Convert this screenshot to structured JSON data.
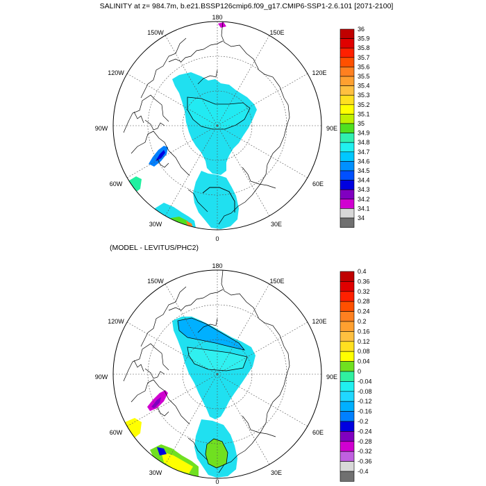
{
  "panels": [
    {
      "id": "top",
      "title": "SALINITY at z= 984.7m, b.e21.BSSP126cmip6.f09_g17.CMIP6-SSP1-2.6.101 [2071-2100]",
      "lon_labels": [
        "180",
        "150E",
        "120E",
        "90E",
        "60E",
        "30E",
        "0",
        "30W",
        "60W",
        "90W",
        "120W",
        "150W"
      ],
      "legend_labels": [
        "36",
        "35.9",
        "35.8",
        "35.7",
        "35.6",
        "35.5",
        "35.4",
        "35.3",
        "35.2",
        "35.1",
        "35",
        "34.9",
        "34.8",
        "34.7",
        "34.6",
        "34.5",
        "34.4",
        "34.3",
        "34.2",
        "34.1",
        "34"
      ],
      "legend_colors": [
        "#c00000",
        "#e00000",
        "#ff2000",
        "#ff5000",
        "#ff8020",
        "#ffa030",
        "#ffc040",
        "#ffe020",
        "#ffff00",
        "#c0f000",
        "#50e020",
        "#30f0b0",
        "#20f0f0",
        "#00c8ff",
        "#0090ff",
        "#0050ff",
        "#0000e0",
        "#8000c0",
        "#d000d0",
        "#d8d8d8",
        "#707070"
      ],
      "shading": {
        "main_fill": "#20e0f0",
        "inner_fill": "#22eaf2",
        "atl_fill": "#20e0f0",
        "baffin_fill": "#0080ff",
        "baffin_core": "#0000e0",
        "labrador_fill": "#20f0a0",
        "greenland_edge": "#ff8020",
        "north_spot": "#d000d0"
      }
    },
    {
      "id": "bottom",
      "title": "(MODEL - LEVITUS/PHC2)",
      "lon_labels": [
        "180",
        "150E",
        "120E",
        "90E",
        "60E",
        "30E",
        "0",
        "30W",
        "60W",
        "90W",
        "120W",
        "150W"
      ],
      "legend_labels": [
        "0.4",
        "0.36",
        "0.32",
        "0.28",
        "0.24",
        "0.2",
        "0.16",
        "0.12",
        "0.08",
        "0.04",
        "0",
        "-0.04",
        "-0.08",
        "-0.12",
        "-0.16",
        "-0.2",
        "-0.24",
        "-0.28",
        "-0.32",
        "-0.36",
        "-0.4"
      ],
      "legend_colors": [
        "#c00000",
        "#e00000",
        "#ff2000",
        "#ff5000",
        "#ff8020",
        "#ffa030",
        "#ffc040",
        "#ffe020",
        "#ffff00",
        "#70e020",
        "#30f0a0",
        "#20f0f0",
        "#20d8ff",
        "#00b0ff",
        "#0080ff",
        "#0000e0",
        "#8000c0",
        "#d000d0",
        "#c060e0",
        "#d8d8d8",
        "#707070"
      ],
      "shading": {
        "main_fill": "#20e0f0",
        "inner_fill": "#30f0f0",
        "atl_fill": "#20e0f0",
        "baffin_fill": "#d000d0",
        "baffin_core": "#8000c0",
        "labrador_fill": "#ffff00",
        "greenland_edge": "#70e020",
        "north_spot": "#0080ff"
      }
    }
  ]
}
